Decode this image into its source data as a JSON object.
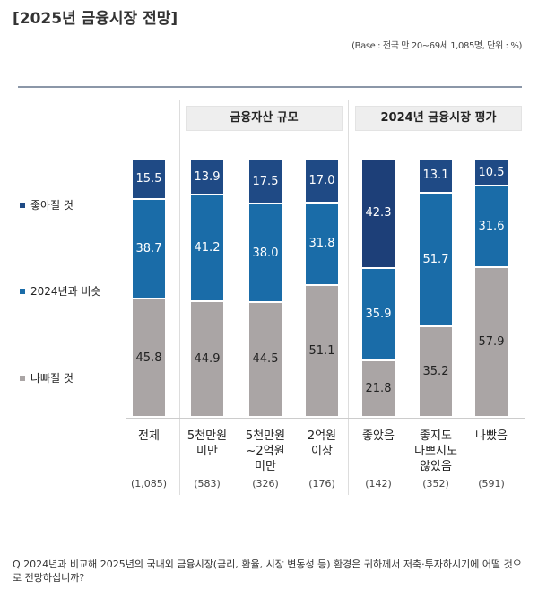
{
  "title": "[2025년 금융시장 전망]",
  "base_note": "(Base : 전국 만 20~69세 1,085명, 단위 : %)",
  "question": "Q  2024년과 비교해 2025년의 국내외 금융시장(금리, 환율, 시장 변동성 등) 환경은 귀하께서 저축·투자하시기에 어떨 것으로 전망하십니까?",
  "groups": [
    "금융자산 규모",
    "2024년 금융시장 평가"
  ],
  "chart_data": {
    "type": "bar",
    "stacked": true,
    "categories": [
      "전체",
      "5천만원\n미만",
      "5천만원\n~2억원\n미만",
      "2억원\n이상",
      "좋았음",
      "좋지도\n나쁘지도\n않았음",
      "나빴음"
    ],
    "sample_sizes": [
      "(1,085)",
      "(583)",
      "(326)",
      "(176)",
      "(142)",
      "(352)",
      "(591)"
    ],
    "series": [
      {
        "name": "나빠질 것",
        "color": "#aaa5a5",
        "values": [
          45.8,
          44.9,
          44.5,
          51.1,
          21.8,
          35.2,
          57.9
        ]
      },
      {
        "name": "2024년과 비슷",
        "color": "#1a6ca8",
        "values": [
          38.7,
          41.2,
          38.0,
          31.8,
          35.9,
          51.7,
          31.6
        ]
      },
      {
        "name": "좋아질 것",
        "color": "#1f4a85",
        "values": [
          15.5,
          13.9,
          17.5,
          17.0,
          42.3,
          13.1,
          10.5
        ]
      }
    ],
    "legend_order": [
      "좋아질 것",
      "2024년과 비슷",
      "나빠질 것"
    ],
    "ylim": [
      0,
      100
    ]
  }
}
